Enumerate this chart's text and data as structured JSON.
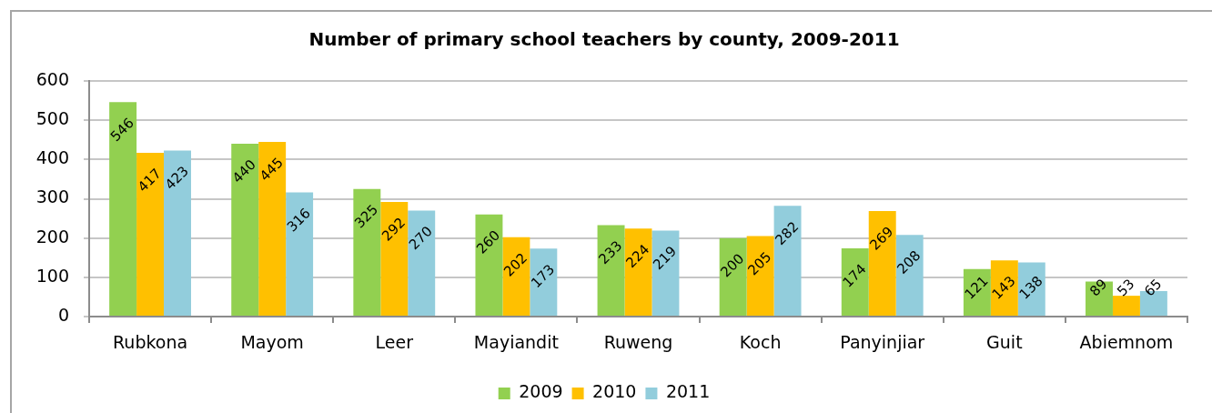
{
  "chart_data": {
    "type": "bar",
    "title": "Number of primary school teachers by county, 2009-2011",
    "categories": [
      "Rubkona",
      "Mayom",
      "Leer",
      "Mayiandit",
      "Ruweng",
      "Koch",
      "Panyinjiar",
      "Guit",
      "Abiemnom"
    ],
    "series": [
      {
        "name": "2009",
        "color": "#92d050",
        "values": [
          546,
          440,
          325,
          260,
          233,
          200,
          174,
          121,
          89
        ]
      },
      {
        "name": "2010",
        "color": "#ffc000",
        "values": [
          417,
          445,
          292,
          202,
          224,
          205,
          269,
          143,
          53
        ]
      },
      {
        "name": "2011",
        "color": "#92cddc",
        "values": [
          423,
          316,
          270,
          173,
          219,
          282,
          208,
          138,
          65
        ]
      }
    ],
    "ylim": [
      0,
      600
    ],
    "yticks": [
      0,
      100,
      200,
      300,
      400,
      500,
      600
    ],
    "grid": "y",
    "legend": "bottom",
    "data_labels": true
  }
}
